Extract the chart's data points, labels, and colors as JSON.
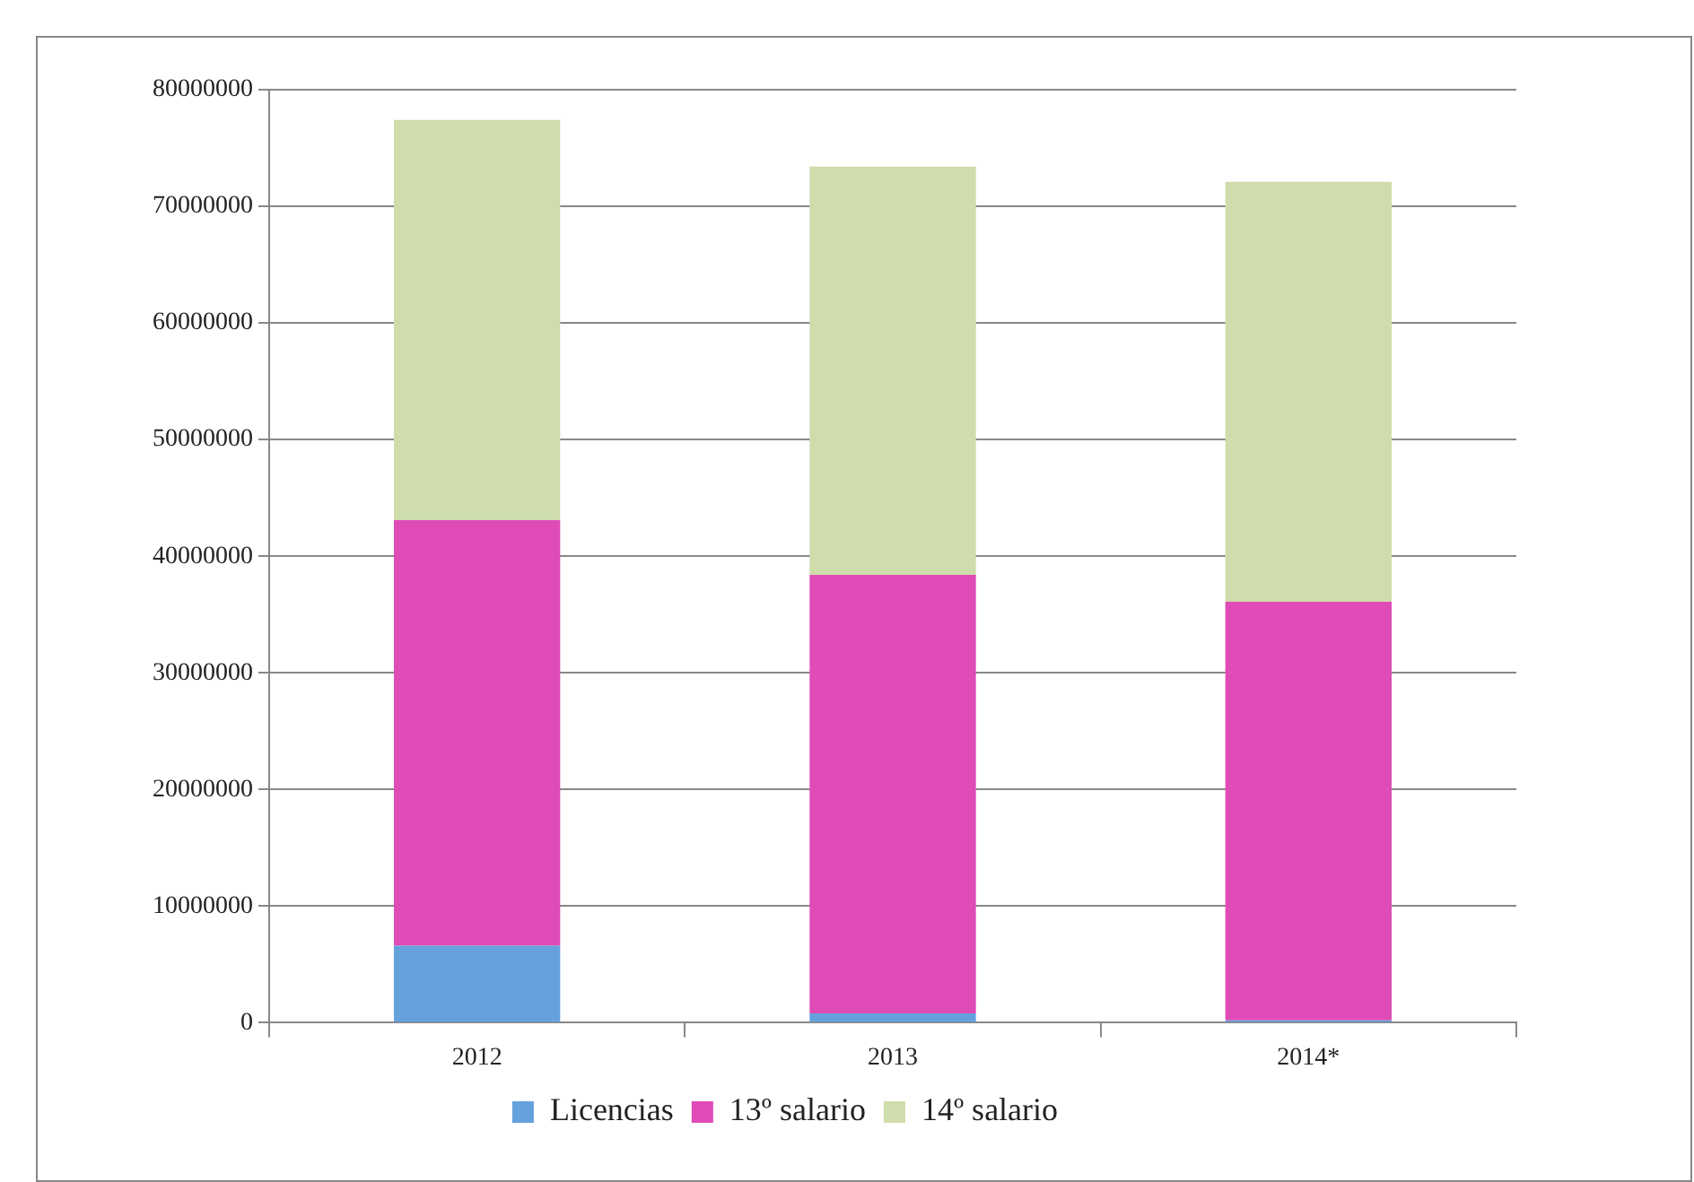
{
  "chart_data": {
    "type": "bar",
    "stacked": true,
    "categories": [
      "2012",
      "2013",
      "2014*"
    ],
    "series": [
      {
        "name": "Licencias",
        "color": "#65a1dd",
        "values": [
          6600000,
          800000,
          200000
        ]
      },
      {
        "name": "13º salario",
        "color": "#df4bb7",
        "values": [
          36500000,
          37600000,
          35900000
        ]
      },
      {
        "name": "14º salario",
        "color": "#cfdcab",
        "values": [
          34300000,
          35000000,
          36000000
        ]
      }
    ],
    "ylim": [
      0,
      80000000
    ],
    "yticks": [
      0,
      10000000,
      20000000,
      30000000,
      40000000,
      50000000,
      60000000,
      70000000,
      80000000
    ],
    "grid": "y",
    "legend": "bottom"
  }
}
